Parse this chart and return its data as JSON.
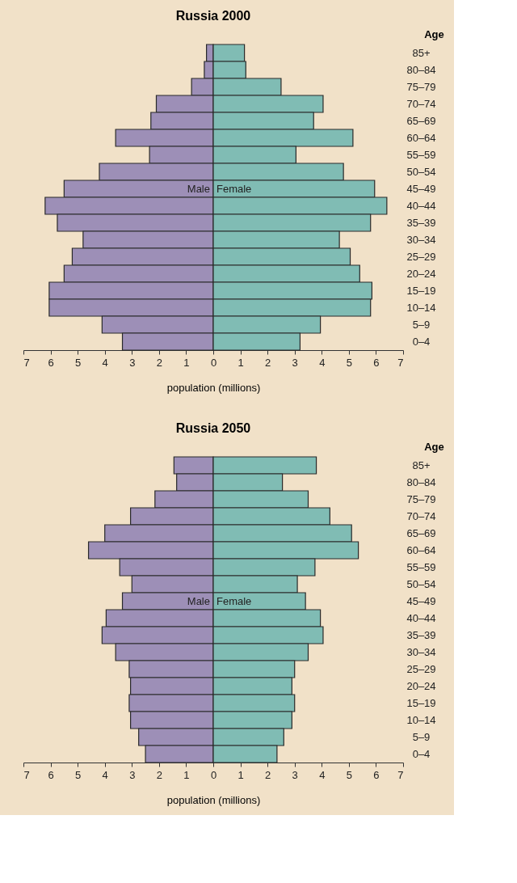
{
  "chart_data": [
    {
      "type": "bar",
      "orientation": "horizontal",
      "stacked": true,
      "title": "Russia 2000",
      "xlabel": "population (millions)",
      "ylabel": "Age",
      "grid": false,
      "categories": [
        "85+",
        "80–84",
        "75–79",
        "70–74",
        "65–69",
        "60–64",
        "55–59",
        "50–54",
        "45–49",
        "40–44",
        "35–39",
        "30–34",
        "25–29",
        "20–24",
        "15–19",
        "10–14",
        "5–9",
        "0–4"
      ],
      "xlim": [
        -7,
        7
      ],
      "xticks": [
        {
          "value": -7,
          "label": "7"
        },
        {
          "value": -6,
          "label": "6"
        },
        {
          "value": -5,
          "label": "5"
        },
        {
          "value": -4,
          "label": "4"
        },
        {
          "value": -3,
          "label": "3"
        },
        {
          "value": -2,
          "label": "2"
        },
        {
          "value": -1,
          "label": "1"
        },
        0,
        1,
        2,
        3,
        4,
        5,
        6,
        7
      ],
      "series": [
        {
          "name": "Male",
          "color": "#9d8fb7",
          "values": [
            -0.25,
            -0.33,
            -0.8,
            -2.1,
            -2.3,
            -3.6,
            -2.35,
            -4.2,
            -5.5,
            -6.2,
            -5.75,
            -4.8,
            -5.2,
            -5.5,
            -6.05,
            -6.05,
            -4.1,
            -3.35
          ]
        },
        {
          "name": "Female",
          "color": "#80bcb4",
          "values": [
            1.15,
            1.2,
            2.5,
            4.05,
            3.7,
            5.15,
            3.05,
            4.8,
            5.95,
            6.4,
            5.8,
            4.65,
            5.05,
            5.4,
            5.85,
            5.8,
            3.95,
            3.2
          ]
        }
      ]
    },
    {
      "type": "bar",
      "orientation": "horizontal",
      "stacked": true,
      "title": "Russia 2050",
      "xlabel": "population (millions)",
      "ylabel": "Age",
      "grid": false,
      "categories": [
        "85+",
        "80–84",
        "75–79",
        "70–74",
        "65–69",
        "60–64",
        "55–59",
        "50–54",
        "45–49",
        "40–44",
        "35–39",
        "30–34",
        "25–29",
        "20–24",
        "15–19",
        "10–14",
        "5–9",
        "0–4"
      ],
      "xlim": [
        -7,
        7
      ],
      "xticks": [
        {
          "value": -7,
          "label": "7"
        },
        {
          "value": -6,
          "label": "6"
        },
        {
          "value": -5,
          "label": "5"
        },
        {
          "value": -4,
          "label": "4"
        },
        {
          "value": -3,
          "label": "3"
        },
        {
          "value": -2,
          "label": "2"
        },
        {
          "value": -1,
          "label": "1"
        },
        0,
        1,
        2,
        3,
        4,
        5,
        6,
        7
      ],
      "series": [
        {
          "name": "Male",
          "color": "#9d8fb7",
          "values": [
            -1.45,
            -1.35,
            -2.15,
            -3.05,
            -4.0,
            -4.6,
            -3.45,
            -3.0,
            -3.35,
            -3.95,
            -4.1,
            -3.6,
            -3.1,
            -3.05,
            -3.1,
            -3.05,
            -2.75,
            -2.5
          ]
        },
        {
          "name": "Female",
          "color": "#80bcb4",
          "values": [
            3.8,
            2.55,
            3.5,
            4.3,
            5.1,
            5.35,
            3.75,
            3.1,
            3.4,
            3.95,
            4.05,
            3.5,
            3.0,
            2.9,
            3.0,
            2.9,
            2.6,
            2.35
          ]
        }
      ]
    }
  ]
}
